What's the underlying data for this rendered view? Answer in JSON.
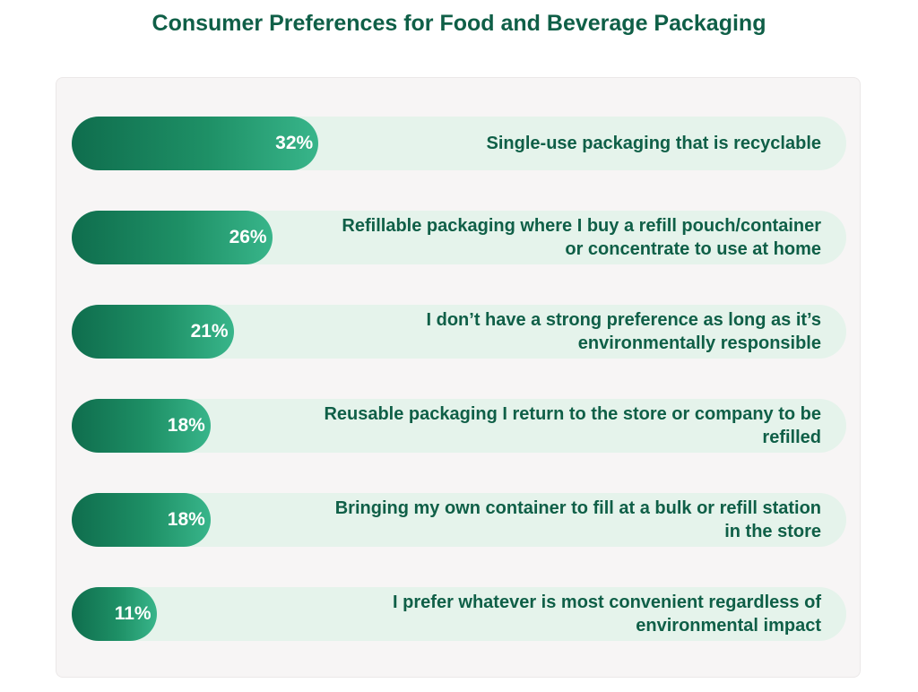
{
  "chart_data": {
    "type": "bar",
    "orientation": "horizontal",
    "title": "Consumer Preferences for Food and Beverage Packaging",
    "categories": [
      "Single-use packaging that is recyclable",
      "Refillable packaging where I buy a refill pouch/container or concentrate to use at home",
      "I don’t have a strong preference as long as it’s environmentally responsible",
      "Reusable packaging I return to the store or company to be refilled",
      "Bringing my own container to fill at a bulk or refill station in the store",
      "I prefer whatever is most convenient regardless of environmental impact"
    ],
    "values": [
      32,
      26,
      21,
      18,
      18,
      11
    ],
    "value_labels": [
      "32%",
      "26%",
      "21%",
      "18%",
      "18%",
      "11%"
    ],
    "unit": "%",
    "colors": {
      "bar_start": "#0f6d4d",
      "bar_end": "#38b58a",
      "track": "#e5f3eb",
      "text": "#0f5f47",
      "panel": "#f7f5f5"
    },
    "grid": false
  }
}
